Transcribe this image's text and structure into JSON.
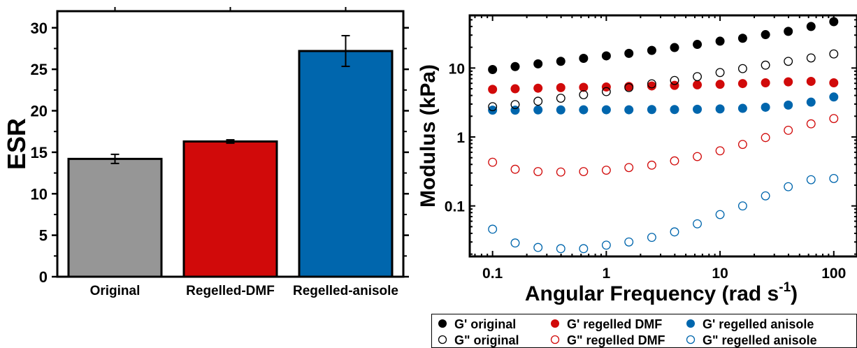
{
  "chart_data": [
    {
      "type": "bar",
      "ylabel": "ESR",
      "xlabel": "",
      "ylim": [
        0,
        32
      ],
      "yticks": [
        0,
        5,
        10,
        15,
        20,
        25,
        30
      ],
      "categories": [
        "Original",
        "Regelled-DMF",
        "Regelled-anisole"
      ],
      "values": [
        14.2,
        16.3,
        27.2
      ],
      "errors": [
        0.55,
        0.2,
        1.85
      ],
      "colors": [
        "#969696",
        "#d10a0a",
        "#0066ad"
      ],
      "grid": false
    },
    {
      "type": "scatter",
      "xlabel": "Angular Frequency (rad s",
      "xlabel_sup": "-1",
      "xlabel_tail": ")",
      "ylabel": "Modulus (kPa)",
      "xscale": "log",
      "yscale": "log",
      "xlim": [
        0.063,
        160
      ],
      "ylim": [
        0.0185,
        58
      ],
      "xticks": [
        {
          "v": 0.1,
          "label": "0.1"
        },
        {
          "v": 1,
          "label": "1"
        },
        {
          "v": 10,
          "label": "10"
        },
        {
          "v": 100,
          "label": "100"
        }
      ],
      "yticks": [
        {
          "v": 0.1,
          "label": "0.1"
        },
        {
          "v": 1,
          "label": "1"
        },
        {
          "v": 10,
          "label": "10"
        }
      ],
      "grid": false,
      "legend_position": "bottom",
      "x": [
        0.1,
        0.158,
        0.251,
        0.398,
        0.631,
        1,
        1.58,
        2.51,
        3.98,
        6.31,
        10,
        15.8,
        25.1,
        39.8,
        63.1,
        100
      ],
      "series": [
        {
          "name": "G' original",
          "marker": "filled",
          "color": "#000000",
          "values": [
            9.5,
            10.5,
            11.5,
            12.5,
            13.8,
            15.0,
            16.3,
            18.0,
            19.8,
            22.0,
            24.5,
            27.0,
            30.5,
            34.0,
            40.0,
            47.0
          ]
        },
        {
          "name": "G' regelled DMF",
          "marker": "filled",
          "color": "#d10a0a",
          "values": [
            4.9,
            5.0,
            5.1,
            5.2,
            5.25,
            5.3,
            5.4,
            5.5,
            5.6,
            5.7,
            5.8,
            5.95,
            6.1,
            6.3,
            6.4,
            6.1
          ]
        },
        {
          "name": "G' regelled anisole",
          "marker": "filled",
          "color": "#0066ad",
          "values": [
            2.45,
            2.45,
            2.47,
            2.47,
            2.48,
            2.48,
            2.48,
            2.5,
            2.5,
            2.52,
            2.55,
            2.6,
            2.7,
            2.9,
            3.2,
            3.8
          ]
        },
        {
          "name": "G\" original",
          "marker": "open",
          "color": "#000000",
          "values": [
            2.75,
            2.95,
            3.3,
            3.65,
            4.1,
            4.55,
            5.2,
            5.9,
            6.6,
            7.5,
            8.6,
            9.8,
            11.0,
            12.5,
            14.0,
            16.0
          ]
        },
        {
          "name": "G\" regelled DMF",
          "marker": "open",
          "color": "#d10a0a",
          "values": [
            0.43,
            0.34,
            0.315,
            0.31,
            0.315,
            0.33,
            0.36,
            0.39,
            0.45,
            0.52,
            0.63,
            0.78,
            0.98,
            1.25,
            1.55,
            1.85
          ]
        },
        {
          "name": "G\" regelled anisole",
          "marker": "open",
          "color": "#0066ad",
          "values": [
            0.046,
            0.029,
            0.025,
            0.024,
            0.024,
            0.027,
            0.03,
            0.035,
            0.042,
            0.055,
            0.075,
            0.1,
            0.14,
            0.19,
            0.24,
            0.25
          ]
        }
      ]
    }
  ]
}
